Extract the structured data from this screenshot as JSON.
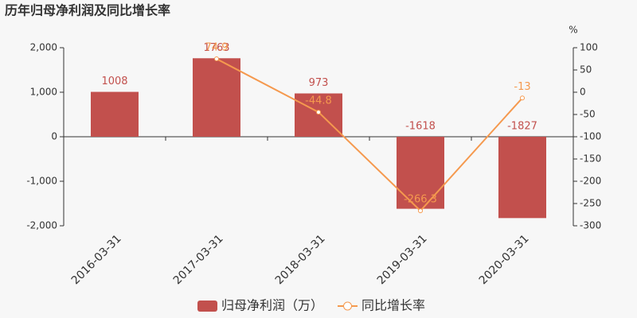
{
  "chart_data": {
    "type": "bar",
    "title": "历年归母净利润及同比增长率",
    "categories": [
      "2016-03-31",
      "2017-03-31",
      "2018-03-31",
      "2019-03-31",
      "2020-03-31"
    ],
    "series": [
      {
        "name": "归母净利润（万）",
        "type": "bar",
        "color": "#c2504d",
        "label_color": "#c2504d",
        "values": [
          1008,
          1763,
          973,
          -1618,
          -1827
        ]
      },
      {
        "name": "同比增长率",
        "type": "line",
        "axis": "y2",
        "color": "#f5994e",
        "label_color": "#f5994e",
        "values": [
          null,
          74.9,
          -44.8,
          -266.3,
          -13
        ]
      }
    ],
    "ylim": [
      -2000,
      2000
    ],
    "yticks": [
      {
        "value": -2000,
        "label": "-2,000"
      },
      {
        "value": -1000,
        "label": "-1,000"
      },
      0,
      {
        "value": 1000,
        "label": "1,000"
      },
      {
        "value": 2000,
        "label": "2,000"
      }
    ],
    "y2label": "%",
    "y2lim": [
      -300,
      100
    ],
    "y2ticks": [
      -300,
      -250,
      -200,
      -150,
      -100,
      -50,
      0,
      50,
      100
    ]
  }
}
